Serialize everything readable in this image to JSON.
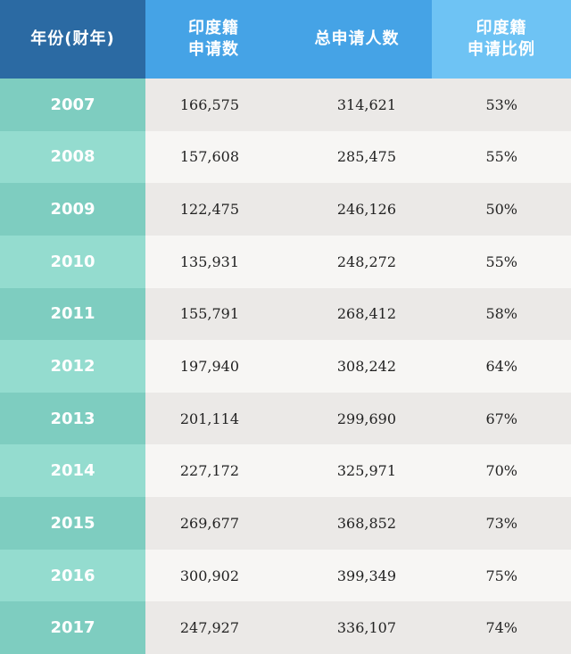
{
  "header": {
    "col_year": "年份(财年)",
    "col_india": "印度籍\n申请数",
    "col_total": "总申请人数",
    "col_ratio": "印度籍\n申请比例"
  },
  "rows": [
    {
      "year": "2007",
      "india": "166,575",
      "total": "314,621",
      "ratio": "53%"
    },
    {
      "year": "2008",
      "india": "157,608",
      "total": "285,475",
      "ratio": "55%"
    },
    {
      "year": "2009",
      "india": "122,475",
      "total": "246,126",
      "ratio": "50%"
    },
    {
      "year": "2010",
      "india": "135,931",
      "total": "248,272",
      "ratio": "55%"
    },
    {
      "year": "2011",
      "india": "155,791",
      "total": "268,412",
      "ratio": "58%"
    },
    {
      "year": "2012",
      "india": "197,940",
      "total": "308,242",
      "ratio": "64%"
    },
    {
      "year": "2013",
      "india": "201,114",
      "total": "299,690",
      "ratio": "67%"
    },
    {
      "year": "2014",
      "india": "227,172",
      "total": "325,971",
      "ratio": "70%"
    },
    {
      "year": "2015",
      "india": "269,677",
      "total": "368,852",
      "ratio": "73%"
    },
    {
      "year": "2016",
      "india": "300,902",
      "total": "399,349",
      "ratio": "75%"
    },
    {
      "year": "2017",
      "india": "247,927",
      "total": "336,107",
      "ratio": "74%"
    }
  ],
  "colors": {
    "header_dark": "#2b6aa3",
    "header_mid": "#45a3e6",
    "header_light": "#6ec3f4",
    "year_teal": "#7ecdc0",
    "year_teal_light": "#94dccf",
    "cell_gray": "#ebe9e7",
    "cell_light": "#f7f6f4"
  }
}
